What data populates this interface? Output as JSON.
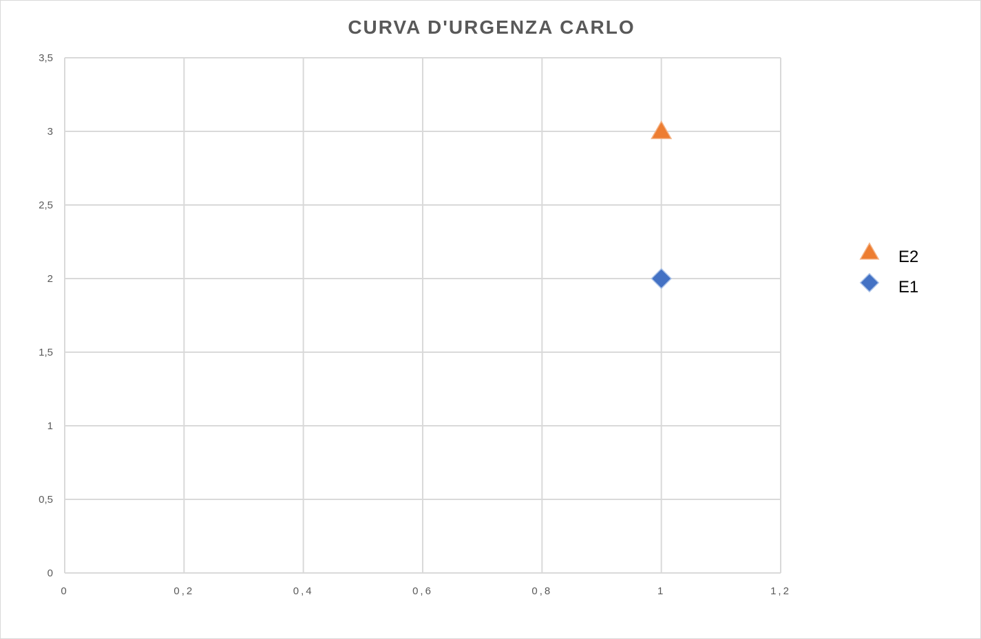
{
  "chart_data": {
    "type": "scatter",
    "title": "CURVA D'URGENZA CARLO",
    "xlabel": "",
    "ylabel": "",
    "xlim": [
      0,
      1.2
    ],
    "ylim": [
      0,
      3.5
    ],
    "x_ticks": [
      "0",
      "0,2",
      "0,4",
      "0,6",
      "0,8",
      "1",
      "1,2"
    ],
    "y_ticks": [
      "0",
      "0,5",
      "1",
      "1,5",
      "2",
      "2,5",
      "3",
      "3,5"
    ],
    "grid": true,
    "legend_position": "right",
    "series": [
      {
        "name": "E2",
        "marker": "triangle",
        "color": "#ED7D31",
        "points": [
          {
            "x": 1,
            "y": 3
          }
        ]
      },
      {
        "name": "E1",
        "marker": "diamond",
        "color": "#4472C4",
        "points": [
          {
            "x": 1,
            "y": 2
          }
        ]
      }
    ]
  }
}
